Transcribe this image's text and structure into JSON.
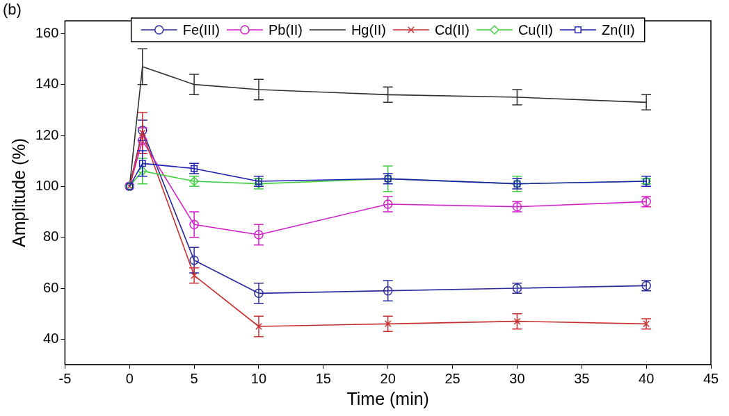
{
  "chart_data": {
    "type": "line",
    "xlabel": "Time (min)",
    "ylabel": "Amplitude (%)",
    "annotations": [
      "(b)"
    ],
    "x": [
      0,
      1,
      5,
      10,
      20,
      30,
      40
    ],
    "xlim": [
      -5,
      45
    ],
    "xticks": [
      -5,
      0,
      5,
      10,
      15,
      20,
      25,
      30,
      35,
      40,
      45
    ],
    "ylim": [
      30,
      165
    ],
    "yticks": [
      40,
      60,
      80,
      100,
      120,
      140,
      160
    ],
    "grid": false,
    "legend": "top",
    "line_style": "solid",
    "series": [
      {
        "name": "Fe(III)",
        "color": "#2b2b9c",
        "marker": "circle",
        "values": [
          100,
          122,
          71,
          58,
          59,
          60,
          61
        ],
        "errors": [
          null,
          4,
          5,
          4,
          4,
          2,
          2
        ]
      },
      {
        "name": "Pb(II)",
        "color": "#d020c8",
        "marker": "circle",
        "values": [
          100,
          118,
          85,
          81,
          93,
          92,
          94
        ],
        "errors": [
          null,
          5,
          5,
          4,
          3,
          2,
          2
        ]
      },
      {
        "name": "Hg(II)",
        "color": "#303030",
        "marker": "none",
        "values": [
          100,
          147,
          140,
          138,
          136,
          135,
          133
        ],
        "errors": [
          null,
          7,
          4,
          4,
          3,
          3,
          3
        ]
      },
      {
        "name": "Cd(II)",
        "color": "#c83030",
        "marker": "cross",
        "values": [
          100,
          121,
          65,
          45,
          46,
          47,
          46
        ],
        "errors": [
          null,
          8,
          3,
          4,
          3,
          3,
          2
        ]
      },
      {
        "name": "Cu(II)",
        "color": "#40d040",
        "marker": "diamond",
        "values": [
          100,
          106,
          102,
          101,
          103,
          101,
          102
        ],
        "errors": [
          null,
          5,
          2,
          2,
          5,
          3,
          1
        ]
      },
      {
        "name": "Zn(II)",
        "color": "#2020b0",
        "marker": "square",
        "values": [
          100,
          109,
          107,
          102,
          103,
          101,
          102
        ],
        "errors": [
          null,
          5,
          2,
          2,
          2,
          2,
          2
        ]
      }
    ]
  }
}
